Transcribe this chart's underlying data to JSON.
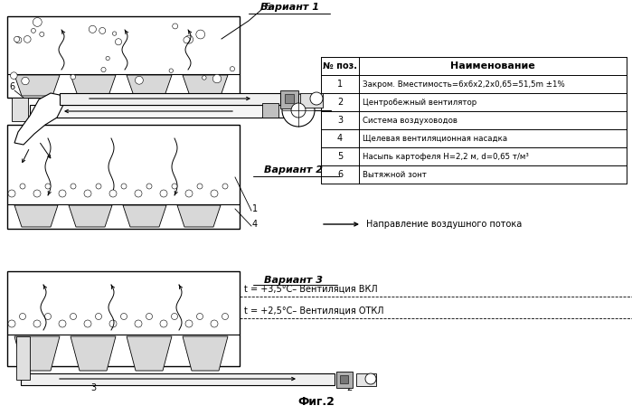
{
  "title": "Фиг.2",
  "background_color": "#ffffff",
  "table_header": [
    "№ поз.",
    "Наименование"
  ],
  "table_rows": [
    [
      "1",
      "Закром. Вместимость=6х6х2,2х0,65=51,5m ±1%"
    ],
    [
      "2",
      "Центробежный вентилятор"
    ],
    [
      "3",
      "Система воздуховодов"
    ],
    [
      "4",
      "Щелевая вентиляционная насадка"
    ],
    [
      "5",
      "Насыпь картофеля Н=2,2 м, d=0,65 т/м³"
    ],
    [
      "6",
      "Вытяжной зонт"
    ]
  ],
  "variant1_label": "Вариант 1",
  "variant2_label": "Вариант 2",
  "variant3_label": "Вариант 3",
  "airflow_label": "Направление воздушного потока",
  "temp1_label": "t = +3,5°С– Вентиляция ВКЛ",
  "temp2_label": "t = +2,5°С– Вентиляция ОТКЛ"
}
